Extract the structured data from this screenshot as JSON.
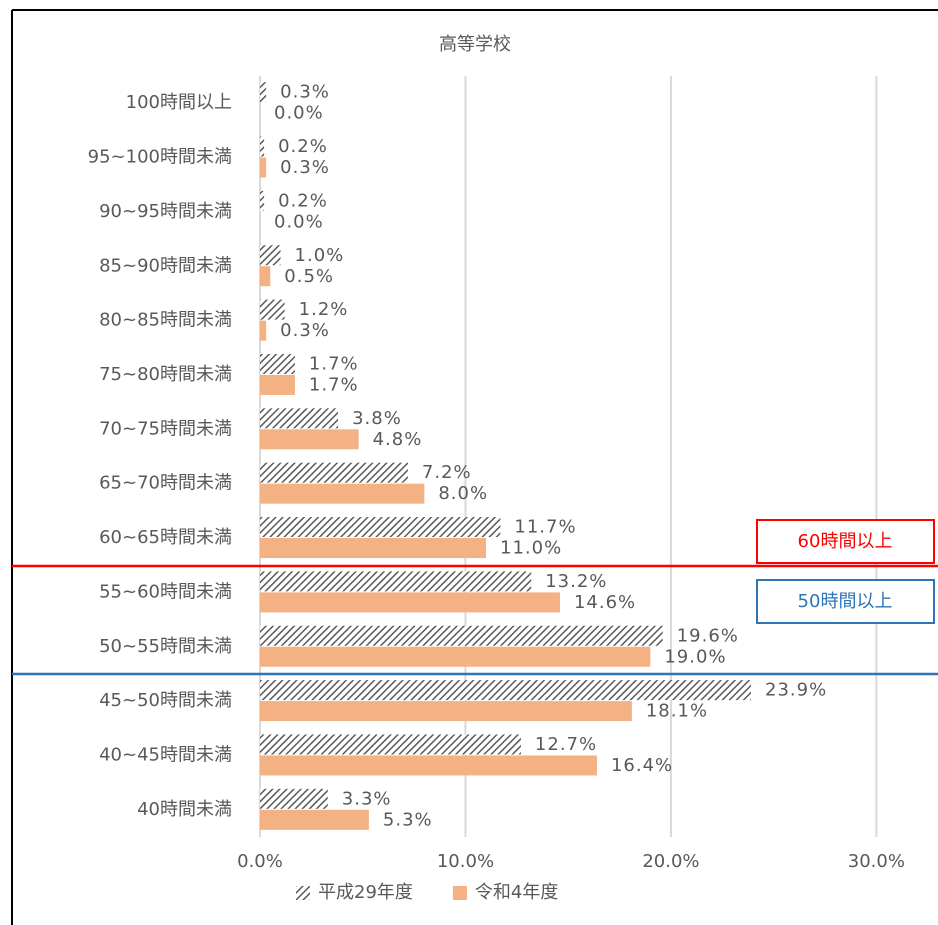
{
  "chart_data": {
    "type": "bar",
    "orientation": "horizontal",
    "title": "高等学校",
    "categories": [
      "100時間以上",
      "95~100時間未満",
      "90~95時間未満",
      "85~90時間未満",
      "80~85時間未満",
      "75~80時間未満",
      "70~75時間未満",
      "65~70時間未満",
      "60~65時間未満",
      "55~60時間未満",
      "50~55時間未満",
      "45~50時間未満",
      "40~45時間未満",
      "40時間未満"
    ],
    "series": [
      {
        "name": "平成29年度",
        "color": "#595959",
        "pattern": "hatch",
        "values": [
          0.3,
          0.2,
          0.2,
          1.0,
          1.2,
          1.7,
          3.8,
          7.2,
          11.7,
          13.2,
          19.6,
          23.9,
          12.7,
          3.3
        ],
        "value_labels": [
          "0.3%",
          "0.2%",
          "0.2%",
          "1.0%",
          "1.2%",
          "1.7%",
          "3.8%",
          "7.2%",
          "11.7%",
          "13.2%",
          "19.6%",
          "23.9%",
          "12.7%",
          "3.3%"
        ]
      },
      {
        "name": "令和4年度",
        "color": "#f4b183",
        "values": [
          0.0,
          0.3,
          0.0,
          0.5,
          0.3,
          1.7,
          4.8,
          8.0,
          11.0,
          14.6,
          19.0,
          18.1,
          16.4,
          5.3
        ],
        "value_labels": [
          "0.0%",
          "0.3%",
          "0.0%",
          "0.5%",
          "0.3%",
          "1.7%",
          "4.8%",
          "8.0%",
          "11.0%",
          "14.6%",
          "19.0%",
          "18.1%",
          "16.4%",
          "5.3%"
        ]
      }
    ],
    "xlim": [
      0,
      33
    ],
    "xticks": [
      {
        "value": 0,
        "label": "0.0%"
      },
      {
        "value": 10,
        "label": "10.0%"
      },
      {
        "value": 20,
        "label": "20.0%"
      },
      {
        "value": 30,
        "label": "30.0%"
      }
    ],
    "grid": true,
    "legend": "bottom",
    "annotations": [
      "60時間以上",
      "50時間以上"
    ]
  }
}
